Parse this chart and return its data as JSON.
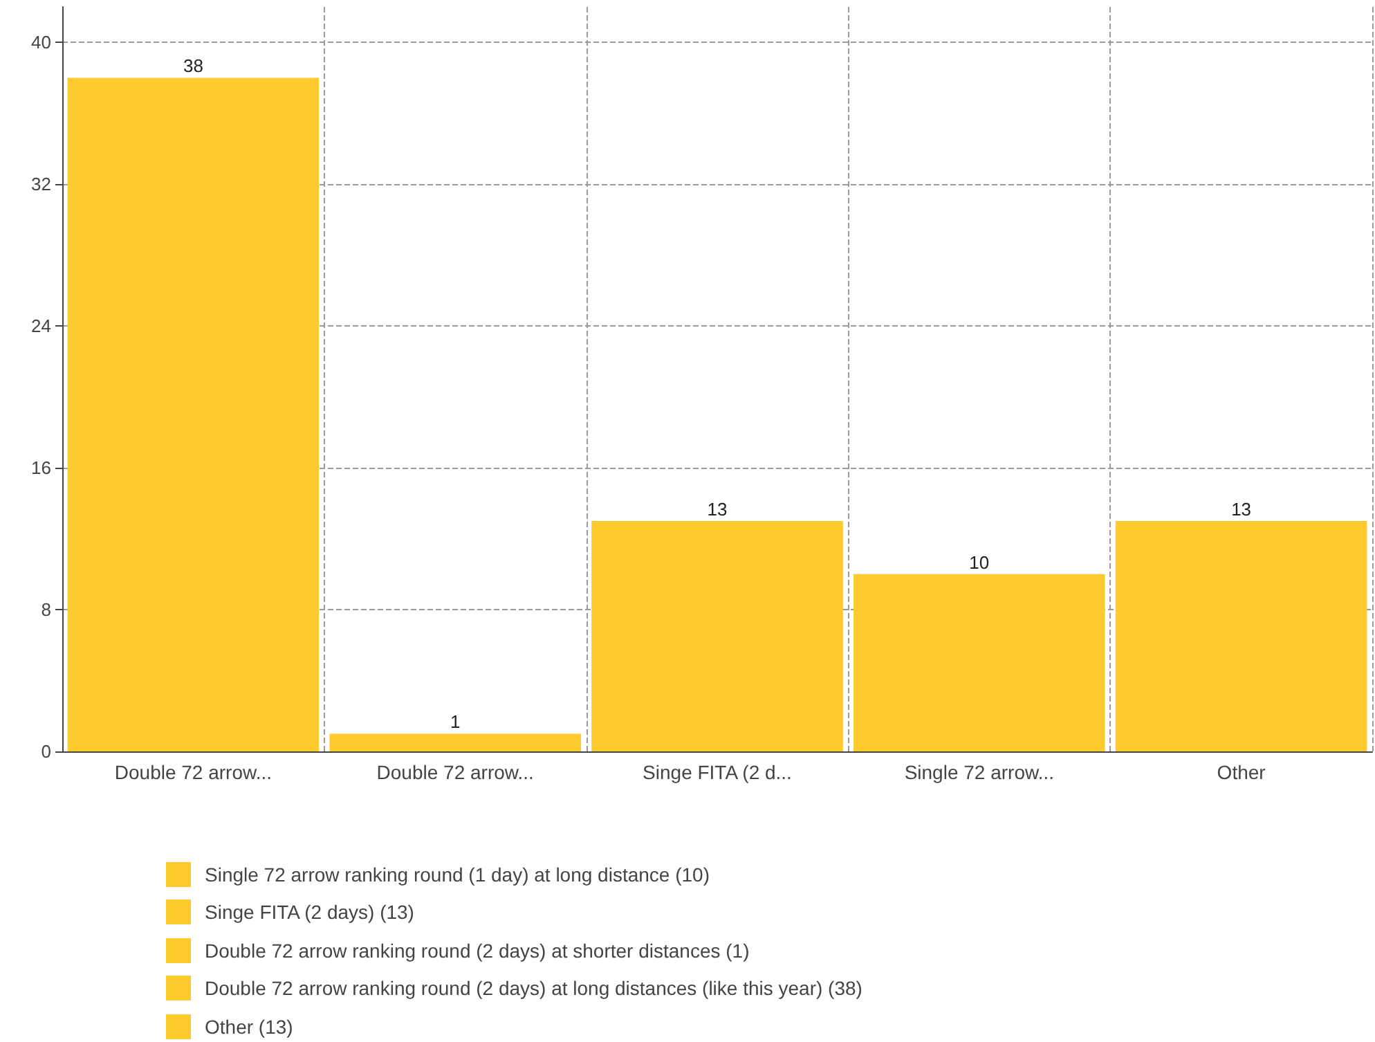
{
  "chart_data": {
    "type": "bar",
    "categories": [
      "Double 72 arrow...",
      "Double 72 arrow...",
      "Singe FITA (2 d...",
      "Single 72 arrow...",
      "Other"
    ],
    "values": [
      38,
      1,
      13,
      10,
      13
    ],
    "color": "#ffca2e",
    "ylim": [
      0,
      42
    ],
    "yticks": [
      0,
      8,
      16,
      24,
      32,
      40
    ],
    "grid": true,
    "data_labels": true,
    "annotations": [
      "Single 72 arrow ranking round (1 day) at long distance (10)",
      "Singe FITA (2 days) (13)",
      "Double 72 arrow ranking round (2 days) at shorter distances (1)",
      "Double 72 arrow ranking round (2 days) at long distances (like this year) (38)",
      "Other (13)"
    ]
  }
}
